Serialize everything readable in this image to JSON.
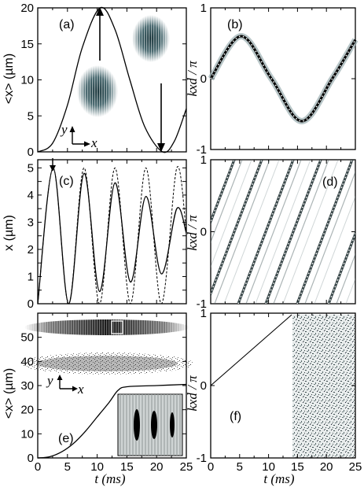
{
  "figure": {
    "panels": [
      {
        "id": "a",
        "label": "(a)"
      },
      {
        "id": "b",
        "label": "(b)"
      },
      {
        "id": "c",
        "label": "(c)"
      },
      {
        "id": "d",
        "label": "(d)"
      },
      {
        "id": "e",
        "label": "(e)"
      },
      {
        "id": "f",
        "label": "(f)"
      }
    ],
    "left_top_ylabel": "<x> (µm)",
    "left_mid_ylabel": "x (µm)",
    "left_bot_ylabel": "<x> (µm)",
    "right_ylabel": "kxd / π",
    "xlabel": "t (ms)",
    "axis_y": "y",
    "axis_x": "x"
  },
  "chart_data": [
    {
      "panel": "a",
      "type": "line",
      "xlabel": "",
      "ylabel": "<x> (µm)",
      "xlim": [
        0,
        25
      ],
      "ylim": [
        0,
        20
      ],
      "yticks": [
        0,
        5,
        10,
        15,
        20
      ],
      "series": [
        {
          "x": [
            0,
            2.5,
            5,
            7.5,
            10.5,
            13,
            15.5,
            18,
            21,
            23,
            25
          ],
          "values": [
            0,
            1.2,
            6.5,
            14.5,
            20,
            17,
            10,
            3.5,
            0,
            1.5,
            6
          ]
        }
      ]
    },
    {
      "panel": "b",
      "type": "line",
      "xlabel": "",
      "ylabel": "kxd / π",
      "xlim": [
        0,
        25
      ],
      "ylim": [
        -1,
        1
      ],
      "yticks": [
        -1,
        0,
        1
      ],
      "series": [
        {
          "x": [
            0,
            5.25,
            10.5,
            15.75,
            21,
            25
          ],
          "values": [
            0,
            0.6,
            0,
            -0.6,
            0,
            0.55
          ]
        }
      ]
    },
    {
      "panel": "c",
      "type": "line",
      "xlabel": "",
      "ylabel": "x (µm)",
      "xlim": [
        0,
        25
      ],
      "ylim": [
        0,
        5.3
      ],
      "yticks": [
        0,
        0.5,
        1,
        1.5,
        2,
        2.5,
        3,
        3.5,
        4,
        4.5,
        5
      ],
      "series": [
        {
          "x": [
            0,
            2.6,
            5.2,
            7.8,
            10.4,
            13.0,
            15.6,
            18.2,
            20.8,
            23.4,
            25
          ],
          "values": [
            0,
            5.0,
            0,
            4.8,
            0.45,
            4.45,
            0.8,
            3.95,
            1.1,
            3.5,
            2.6
          ]
        },
        {
          "x": [
            0,
            2.6,
            5.2,
            7.8,
            10.4,
            13.0,
            15.6,
            18.2,
            20.8,
            23.4,
            25
          ],
          "values": [
            0,
            5.0,
            0,
            5.0,
            0,
            5.0,
            0,
            5.0,
            0,
            5.0,
            2.6
          ]
        }
      ]
    },
    {
      "panel": "d",
      "type": "heatmap",
      "xlabel": "",
      "ylabel": "kxd / π",
      "xlim": [
        0,
        25
      ],
      "ylim": [
        -1,
        1
      ],
      "yticks": [
        -1,
        0,
        1
      ]
    },
    {
      "panel": "e",
      "type": "line",
      "xlabel": "t (ms)",
      "ylabel": "<x> (µm)",
      "xlim": [
        0,
        25
      ],
      "ylim": [
        0,
        60
      ],
      "xticks": [
        0,
        5,
        10,
        15,
        20,
        25
      ],
      "yticks": [
        0,
        10,
        20,
        30,
        40,
        50
      ],
      "series": [
        {
          "x": [
            0,
            2,
            4,
            6,
            8,
            10,
            12,
            13.5,
            15,
            20,
            25
          ],
          "values": [
            0,
            0.5,
            2.5,
            6,
            11,
            17,
            23,
            28,
            29.5,
            30,
            30.5
          ]
        }
      ]
    },
    {
      "panel": "f",
      "type": "heatmap",
      "xlabel": "t (ms)",
      "ylabel": "kxd / π",
      "xlim": [
        0,
        25
      ],
      "ylim": [
        -1,
        1
      ],
      "xticks": [
        0,
        5,
        10,
        15,
        20,
        25
      ],
      "yticks": [
        -1,
        0,
        1
      ]
    }
  ]
}
